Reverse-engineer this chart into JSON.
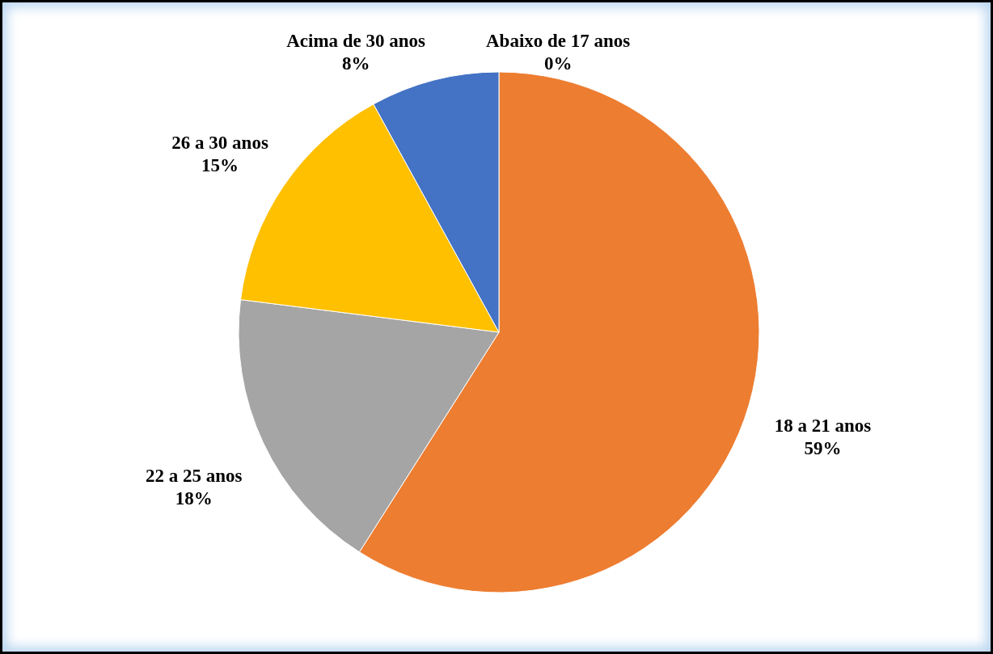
{
  "chart_data": {
    "type": "pie",
    "categories": [
      "Abaixo de 17 anos",
      "18 a 21 anos",
      "22 a 25 anos",
      "26 a 30 anos",
      "Acima de 30 anos"
    ],
    "values": [
      0,
      59,
      18,
      15,
      8
    ],
    "value_labels": [
      "0%",
      "59%",
      "18%",
      "15%",
      "8%"
    ],
    "colors": [
      "#5b9bd5",
      "#ed7d31",
      "#a5a5a5",
      "#ffc000",
      "#4472c4"
    ]
  }
}
